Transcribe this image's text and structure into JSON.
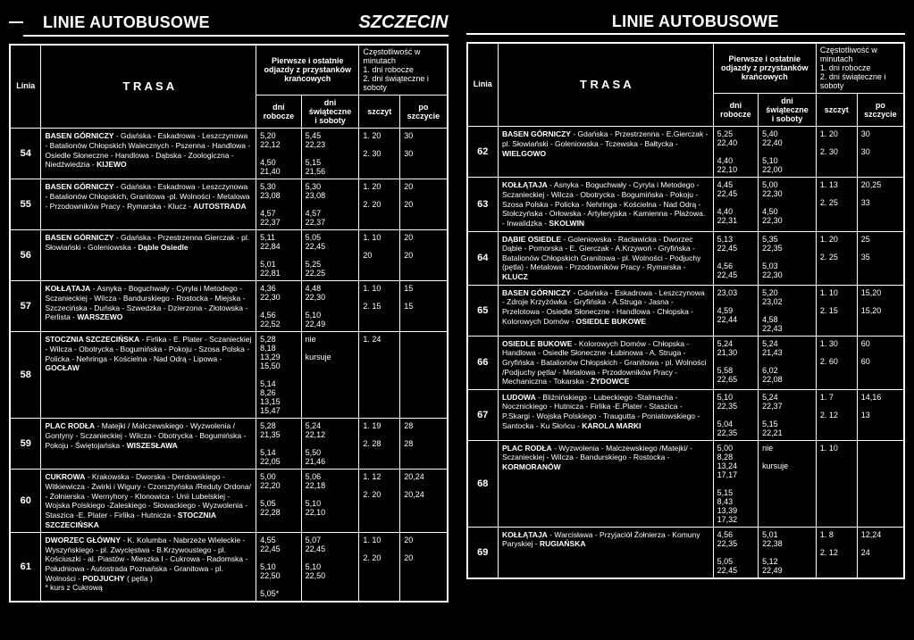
{
  "header": {
    "title": "LINIE AUTOBUSOWE",
    "city": "SZCZECIN"
  },
  "columns": {
    "linia": "Linia",
    "trasa": "T R A S A",
    "departures_group": "Pierwsze i ostatnie odjazdy z przystanków krańcowych",
    "frequency_group": "Częstotliwość w minutach\n1. dni robocze\n2. dni świąteczne i soboty",
    "dni_robocze": "dni\nrobocze",
    "dni_swiateczne": "dni\nświąteczne\ni soboty",
    "szczyt": "szczyt",
    "po_szczycie": "po\nszczycie"
  },
  "left": [
    {
      "linia": "54",
      "trasa": "<b>BASEN GÓRNICZY</b> - Gdańska - Eskadrowa - Leszczynowa - Batalionów Chłopskich Walecznych - Pszenna - Handlowa - Osiedle Słoneczne - Handlowa - Dąbska - Zoologiczna - Niedźwiedzia - <b>KIJEWO</b>",
      "robocze": "5,20\n22,12\n\n4,50\n21,40",
      "swiat": "5,45\n22,23\n\n5,15\n21,56",
      "szczyt": "1.  20\n\n2.  30",
      "po": "30\n\n30"
    },
    {
      "linia": "55",
      "trasa": "<b>BASEN GÓRNICZY</b> - Gdańska - Eskadrowa - Leszczynowa - Batalionów Chłopskich, Granitowa -pl. Wolności - Metalowa - Przodowników Pracy - Rymarska - Klucz - <b>AUTOSTRADA</b>",
      "robocze": "5,30\n23,08\n\n4,57\n22,37",
      "swiat": "5,30\n23,08\n\n4,57\n22,37",
      "szczyt": "1.  20\n\n2.  20",
      "po": "20\n\n20"
    },
    {
      "linia": "56",
      "trasa": "<b>BASEN GÓRNICZY</b> - Gdańska - Przestrzenna Gierczak - pl. Słowiański - Goleniowska - <b>Dąble Osiedle</b>",
      "robocze": "5,11\n22,84\n\n5,01\n22,81",
      "swiat": "5,05\n22,45\n\n5,25\n22,25",
      "szczyt": "1.  10\n\n      20",
      "po": "20\n\n20"
    },
    {
      "linia": "57",
      "trasa": "<b>KOŁŁĄTAJA</b> - Asnyka - Boguchwały - Cyryla i Metodego - Sczanieckiej - Wilcza - Bandurskiego - Rostocka - Miejska - Szczecińska - Duńska - Szwedzka - Dzierzona - Złotowska - Perlista - <b>WARSZEWO</b>",
      "robocze": "4,36\n22,30\n\n4,56\n22,52",
      "swiat": "4,48\n22,30\n\n5,10\n22,49",
      "szczyt": "1.  10\n\n2.  15",
      "po": "15\n\n15"
    },
    {
      "linia": "58",
      "trasa": "<b>STOCZNIA SZCZECIŃSKA</b> - Firlika - E. Plater - Sczanieckiej - Wilcza - Obotrycka - Bogumińska - Pokoju - Szosa Polska - Policka - Nehringa - Kościelna - Nad Odrą - Lipowa - <b>GOCŁAW</b>",
      "robocze": "5,28\n8,18\n13,29\n15,50\n\n5,14\n8,26\n13,15\n15,47",
      "swiat": "nie\n\nkursuje",
      "szczyt": "1.  24",
      "po": ""
    },
    {
      "linia": "59",
      "trasa": "<b>PLAC RODŁA</b> - Matejki / Malczewskiego - Wyzwolenia / Gontyny - Sczanieckiej - Wilcza - Obotrycka - Bogumińska - Pokoju - Świętojańska - <b>WISZESŁAWA</b>",
      "robocze": "5,28\n21,35\n\n5,14\n22,05",
      "swiat": "5,24\n22,12\n\n5,50\n21,46",
      "szczyt": "1.  19\n\n2.  28",
      "po": "28\n\n28"
    },
    {
      "linia": "60",
      "trasa": "<b>CUKROWA</b> - Krakowska - Dworska - Derdowskiego - Witkiewicza - Żwirki i Wigury - Czorsztyńska /Reduty Ordona/ - Żołnierska - Wernyhory - Klonowica - Unii Lubelskiej - Wojska Polskiego -Zaleskiego - Słowackiego - Wyzwolenia - Staszica -E. Plater - Firlika - Hutnicza - <b>STOCZNIA SZCZECIŃSKA</b>",
      "robocze": "5,00\n22,20\n\n5,05\n22,28",
      "swiat": "5,06\n22,18\n\n5,10\n22,10",
      "szczyt": "1.  12\n\n2.  20",
      "po": "20,24\n\n20,24"
    },
    {
      "linia": "61",
      "trasa": "<b>DWORZEC GŁÓWNY</b> - K. Kolumba - Nabrzeże Wieleckie - Wyszyńskiego - pl. Zwycięstwa - B.Krzywoustego - pl. Kościuszki - al. Piastów - Mieszka I - Cukrowa - Radomska - Południowa - Autostrada Poznańska - Granitowa - pl. Wolności - <b>PODJUCHY</b> ( pętla )<br>* kurs z Cukrową",
      "robocze": "4,55\n22,45\n\n5,10\n22,50\n\n5,05*",
      "swiat": "5,07\n22,45\n\n5,10\n22,50",
      "szczyt": "1.  10\n\n2.  20",
      "po": "20\n\n20"
    }
  ],
  "right": [
    {
      "linia": "62",
      "trasa": "<b>BASEN GÓRNICZY</b> - Gdańska - Przestrzenna - E.Gierczak - pl. Słowiański - Goleniowska - Tczewska - Bałtycka - <b>WIELGOWO</b>",
      "robocze": "5,25\n22,40\n\n4,40\n22,10",
      "swiat": "5,40\n22,40\n\n5,10\n22,00",
      "szczyt": "1.  20\n\n2.  30",
      "po": "30\n\n30"
    },
    {
      "linia": "63",
      "trasa": "<b>KOŁŁĄTAJA</b> - Asnyka - Boguchwały - Cyryla i Metodego -Sczanieckiej - Wilcza - Obotrycka - Bogumińska - Pokoju - Szosa Polska - Policka - Nehringa - Kościelna - Nad Odrą - Stołczyńska - Orłowska - Artyleryjska - Kamienna - Płażowa. - Inwalidzka - <b>SKOLWIN</b>",
      "robocze": "4,45\n22,45\n\n4,40\n22,31",
      "swiat": "5,00\n22,30\n\n4,50\n22,30",
      "szczyt": "1.  13\n\n2.  25",
      "po": "20,25\n\n33"
    },
    {
      "linia": "64",
      "trasa": "<b>DĄBIE OSIEDLE</b> - Goleniowska - Racławicka - Dworzec Dąbie - Pomorska - E. Gierczak - A.Krzywoń - Gryfińska - Batalionów Chłopskich Granitowa - pl. Wolności - Podjuchy (pętla) - Metalowa - Przodowników Pracy - Rymarska - <b>KLUCZ</b>",
      "robocze": "5,13\n22,45\n\n4,56\n22,45",
      "swiat": "5,35\n22,35\n\n5,03\n22,30",
      "szczyt": "1.  20\n\n2.  25",
      "po": "25\n\n35"
    },
    {
      "linia": "65",
      "trasa": "<b>BASEN GÓRNICZY</b> - Gdańska - Eskadrowa - Leszczynowa - Zdroje Krzyżówka - Gryfińska - A.Struga - Jasna - Przelotowa - Osiedle Słoneczne - Handlowa - Chłopska - Kolorowych Domów - <b>OSIEDLE BUKOWE</b>",
      "robocze": "23,03\n\n4,59\n22,44",
      "swiat": "5,20\n23,02\n\n4,58\n22,43",
      "szczyt": "1.  10\n\n2.  15",
      "po": "15,20\n\n15,20"
    },
    {
      "linia": "66",
      "trasa": "<b>OSIEDLE BUKOWE</b> - Kolorowych Domów - Chłopska - Handlowa - Osiedle Słoneczne -Łubinowa - A. Struga - Gryfińska - Batalionów Chłopskich - Granitowa - pl. Wolności /Podjuchy pętla/ - Metalowa - Przodowników Pracy - Mechaniczna - Tokarska - <b>ŻYDOWCE</b>",
      "robocze": "5,24\n21,30\n\n5,58\n22,65",
      "swiat": "5,24\n21,43\n\n6,02\n22,08",
      "szczyt": "1.  30\n\n2.  60",
      "po": "60\n\n60"
    },
    {
      "linia": "67",
      "trasa": "<b>LUDOWA</b> - Bliźnińskiego - Lubeckiego -Stalmacha - Nocznickiego - Hutnicza - Firlika -E.Plater - Staszica - P.Skargi - Wojska Polskiego - Traugutta - Poniatowskiego - Santocka - Ku Słońcu - <b>KAROLA MARKI</b>",
      "robocze": "5,10\n22,35\n\n5,04\n22,35",
      "swiat": "5,24\n22,37\n\n5,15\n22,21",
      "szczyt": "1.  7\n\n2.  12",
      "po": "14,16\n\n13"
    },
    {
      "linia": "68",
      "trasa": "<b>PLAC RODŁA</b> - Wyzwolenia - Malczewskiego /Matejki/ - Sczanieckiej - Wilcza - Bandurskiego - Rostocka - <b>KORMORANÓW</b>",
      "robocze": "5,00\n8,28\n13,24\n17,17\n\n5,15\n8,43\n13,39\n17,32",
      "swiat": "nie\n\nkursuje",
      "szczyt": "1.  10",
      "po": ""
    },
    {
      "linia": "69",
      "trasa": "<b>KOŁŁĄTAJA</b> - Warcisława - Przyjaciół Żołnierza - Komuny Paryskiej - <b>RUGIAŃSKA</b>",
      "robocze": "4,56\n22,35\n\n5,05\n22,45",
      "swiat": "5,01\n22,38\n\n5,12\n22,49",
      "szczyt": "1.  8\n\n2.  12",
      "po": "12,24\n\n24"
    }
  ]
}
